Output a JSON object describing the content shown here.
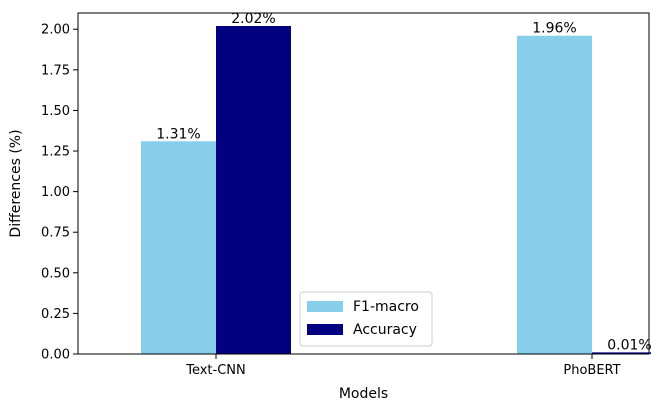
{
  "chart_data": {
    "type": "bar",
    "title": "",
    "xlabel": "Models",
    "ylabel": "Differences (%)",
    "ylim": [
      0,
      2.1
    ],
    "yticks": [
      "0.00",
      "0.25",
      "0.50",
      "0.75",
      "1.00",
      "1.25",
      "1.50",
      "1.75",
      "2.00"
    ],
    "categories": [
      "Text-CNN",
      "PhoBERT"
    ],
    "series": [
      {
        "name": "F1-macro",
        "color": "#87ceeb",
        "values": [
          1.31,
          1.96
        ],
        "labels": [
          "1.31%",
          "1.96%"
        ]
      },
      {
        "name": "Accuracy",
        "color": "#000080",
        "values": [
          2.02,
          0.01
        ],
        "labels": [
          "2.02%",
          "0.01%"
        ]
      }
    ],
    "grid": false,
    "legend_position": "bottom-center"
  }
}
